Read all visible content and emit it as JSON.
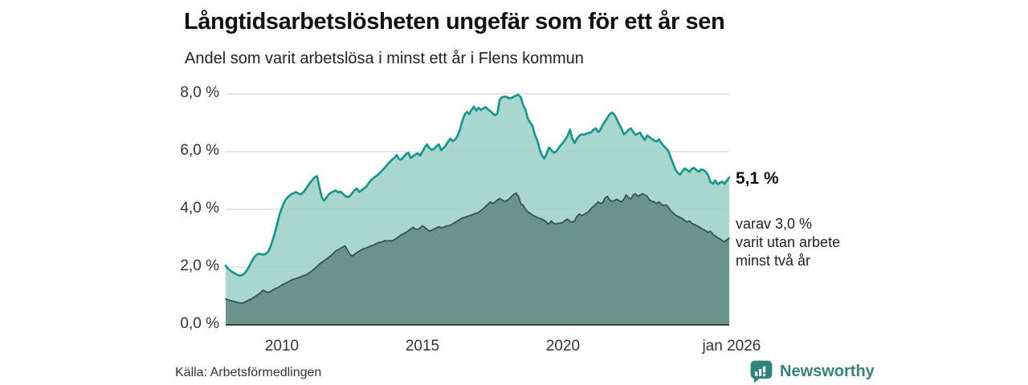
{
  "header": {
    "title": "Långtidsarbetslösheten ungefär som för ett år sen",
    "subtitle": "Andel som varit arbetslösa i minst ett år i Flens kommun"
  },
  "chart_data": {
    "type": "area",
    "title": "Långtidsarbetslösheten ungefär som för ett år sen",
    "subtitle": "Andel som varit arbetslösa i minst ett år i Flens kommun",
    "unit": "%",
    "x_start": "jan 2008",
    "x_end": "dec 2025",
    "frequency": "monthly",
    "ylim": [
      0,
      8
    ],
    "grid": true,
    "legend_position": "right-annotations",
    "y_ticks": [
      {
        "value": 0,
        "label": "0,0 %"
      },
      {
        "value": 2,
        "label": "2,0 %"
      },
      {
        "value": 4,
        "label": "4,0 %"
      },
      {
        "value": 6,
        "label": "6,0 %"
      },
      {
        "value": 8,
        "label": "8,0 %"
      }
    ],
    "x_ticks": [
      {
        "month_index": 24,
        "label": "2010"
      },
      {
        "month_index": 84,
        "label": "2015"
      },
      {
        "month_index": 144,
        "label": "2020"
      },
      {
        "month_index": 216,
        "label": "jan 2026"
      }
    ],
    "series": [
      {
        "name": "Andel arbetslösa minst ett år",
        "latest_value": 5.1,
        "line_color": "#10968A",
        "fill_color": "#9DD0C7",
        "line_width": 2.6,
        "values": [
          2.05,
          1.95,
          1.88,
          1.82,
          1.78,
          1.73,
          1.7,
          1.72,
          1.78,
          1.88,
          2.02,
          2.18,
          2.32,
          2.42,
          2.46,
          2.45,
          2.43,
          2.45,
          2.52,
          2.68,
          2.92,
          3.18,
          3.5,
          3.82,
          4.05,
          4.25,
          4.38,
          4.46,
          4.52,
          4.56,
          4.6,
          4.55,
          4.52,
          4.58,
          4.68,
          4.8,
          4.92,
          5.02,
          5.12,
          5.15,
          4.78,
          4.42,
          4.3,
          4.4,
          4.52,
          4.58,
          4.62,
          4.66,
          4.58,
          4.62,
          4.54,
          4.47,
          4.42,
          4.46,
          4.56,
          4.66,
          4.72,
          4.6,
          4.66,
          4.72,
          4.78,
          4.9,
          5.0,
          5.08,
          5.14,
          5.2,
          5.28,
          5.36,
          5.45,
          5.55,
          5.64,
          5.72,
          5.78,
          5.88,
          5.74,
          5.72,
          5.82,
          5.92,
          5.96,
          5.78,
          5.84,
          5.9,
          5.94,
          5.86,
          6.0,
          6.15,
          6.25,
          6.12,
          6.06,
          6.1,
          6.18,
          6.25,
          6.05,
          6.12,
          6.22,
          6.35,
          6.45,
          6.36,
          6.42,
          6.55,
          6.75,
          7.05,
          7.28,
          7.38,
          7.3,
          7.45,
          7.56,
          7.42,
          7.52,
          7.44,
          7.5,
          7.54,
          7.46,
          7.4,
          7.32,
          7.26,
          7.32,
          7.8,
          7.88,
          7.9,
          7.9,
          7.84,
          7.86,
          7.9,
          7.94,
          7.97,
          7.88,
          7.62,
          7.45,
          7.15,
          7.0,
          6.9,
          6.58,
          6.4,
          6.1,
          5.88,
          5.76,
          5.92,
          6.14,
          6.06,
          5.96,
          6.0,
          6.1,
          6.22,
          6.3,
          6.42,
          6.55,
          6.76,
          6.45,
          6.3,
          6.45,
          6.55,
          6.6,
          6.58,
          6.62,
          6.65,
          6.66,
          6.76,
          6.8,
          6.68,
          6.76,
          6.92,
          7.05,
          7.18,
          7.3,
          7.35,
          7.28,
          7.12,
          6.95,
          6.8,
          6.6,
          6.66,
          6.76,
          6.8,
          6.68,
          6.58,
          6.62,
          6.66,
          6.5,
          6.4,
          6.56,
          6.5,
          6.44,
          6.38,
          6.35,
          6.43,
          6.3,
          6.2,
          6.12,
          6.02,
          5.8,
          5.6,
          5.38,
          5.26,
          5.2,
          5.32,
          5.42,
          5.36,
          5.3,
          5.4,
          5.44,
          5.36,
          5.3,
          5.38,
          5.36,
          5.3,
          5.18,
          4.95,
          4.88,
          5.0,
          4.87,
          4.92,
          4.96,
          4.88,
          5.0,
          5.1
        ]
      },
      {
        "name": "Varav utan arbete minst två år",
        "latest_value": 3.0,
        "line_color": "#35544E",
        "fill_color": "#618A83",
        "line_width": 1.8,
        "values": [
          0.9,
          0.87,
          0.84,
          0.82,
          0.8,
          0.78,
          0.76,
          0.75,
          0.78,
          0.82,
          0.86,
          0.9,
          0.95,
          1.0,
          1.06,
          1.12,
          1.2,
          1.16,
          1.12,
          1.15,
          1.2,
          1.25,
          1.28,
          1.32,
          1.38,
          1.42,
          1.46,
          1.5,
          1.55,
          1.58,
          1.6,
          1.63,
          1.66,
          1.7,
          1.72,
          1.76,
          1.82,
          1.88,
          1.95,
          2.02,
          2.1,
          2.16,
          2.22,
          2.28,
          2.34,
          2.4,
          2.48,
          2.56,
          2.6,
          2.64,
          2.7,
          2.73,
          2.58,
          2.45,
          2.38,
          2.44,
          2.5,
          2.55,
          2.6,
          2.64,
          2.66,
          2.7,
          2.73,
          2.76,
          2.8,
          2.84,
          2.86,
          2.88,
          2.92,
          2.9,
          2.92,
          2.9,
          2.95,
          3.0,
          3.06,
          3.12,
          3.16,
          3.2,
          3.26,
          3.32,
          3.38,
          3.32,
          3.3,
          3.36,
          3.43,
          3.38,
          3.3,
          3.24,
          3.28,
          3.32,
          3.36,
          3.4,
          3.36,
          3.38,
          3.42,
          3.43,
          3.45,
          3.5,
          3.55,
          3.6,
          3.65,
          3.7,
          3.72,
          3.75,
          3.78,
          3.8,
          3.84,
          3.86,
          3.9,
          3.96,
          4.02,
          4.1,
          4.18,
          4.26,
          4.2,
          4.25,
          4.32,
          4.38,
          4.32,
          4.28,
          4.3,
          4.36,
          4.44,
          4.52,
          4.56,
          4.45,
          4.2,
          4.14,
          4.0,
          3.92,
          3.86,
          3.8,
          3.76,
          3.72,
          3.69,
          3.66,
          3.62,
          3.55,
          3.49,
          3.6,
          3.52,
          3.49,
          3.52,
          3.52,
          3.55,
          3.62,
          3.66,
          3.58,
          3.56,
          3.6,
          3.76,
          3.84,
          3.78,
          3.82,
          3.88,
          3.92,
          4.03,
          4.1,
          4.17,
          4.26,
          4.2,
          4.24,
          4.4,
          4.45,
          4.32,
          4.28,
          4.3,
          4.35,
          4.3,
          4.26,
          4.35,
          4.5,
          4.4,
          4.36,
          4.5,
          4.54,
          4.45,
          4.5,
          4.54,
          4.5,
          4.45,
          4.32,
          4.28,
          4.26,
          4.2,
          4.26,
          4.18,
          4.12,
          4.16,
          4.08,
          3.95,
          3.88,
          3.8,
          3.76,
          3.72,
          3.68,
          3.62,
          3.56,
          3.6,
          3.52,
          3.48,
          3.44,
          3.4,
          3.34,
          3.3,
          3.26,
          3.2,
          3.24,
          3.14,
          3.08,
          3.02,
          2.98,
          2.92,
          2.88,
          2.95,
          3.0
        ]
      }
    ]
  },
  "annotations": {
    "latest_total_label": "5,1 %",
    "series2_note_line1": "varav 3,0 %",
    "series2_note_line2": "varit utan arbete",
    "series2_note_line3": "minst två år"
  },
  "footer": {
    "source": "Källa: Arbetsförmedlingen",
    "brand": "Newsworthy"
  },
  "colors": {
    "grid": "#D6D6D6",
    "axis": "#3F3F3F",
    "title_text": "#111111",
    "tick_text": "#333333",
    "brand_teal": "#2E857C"
  }
}
